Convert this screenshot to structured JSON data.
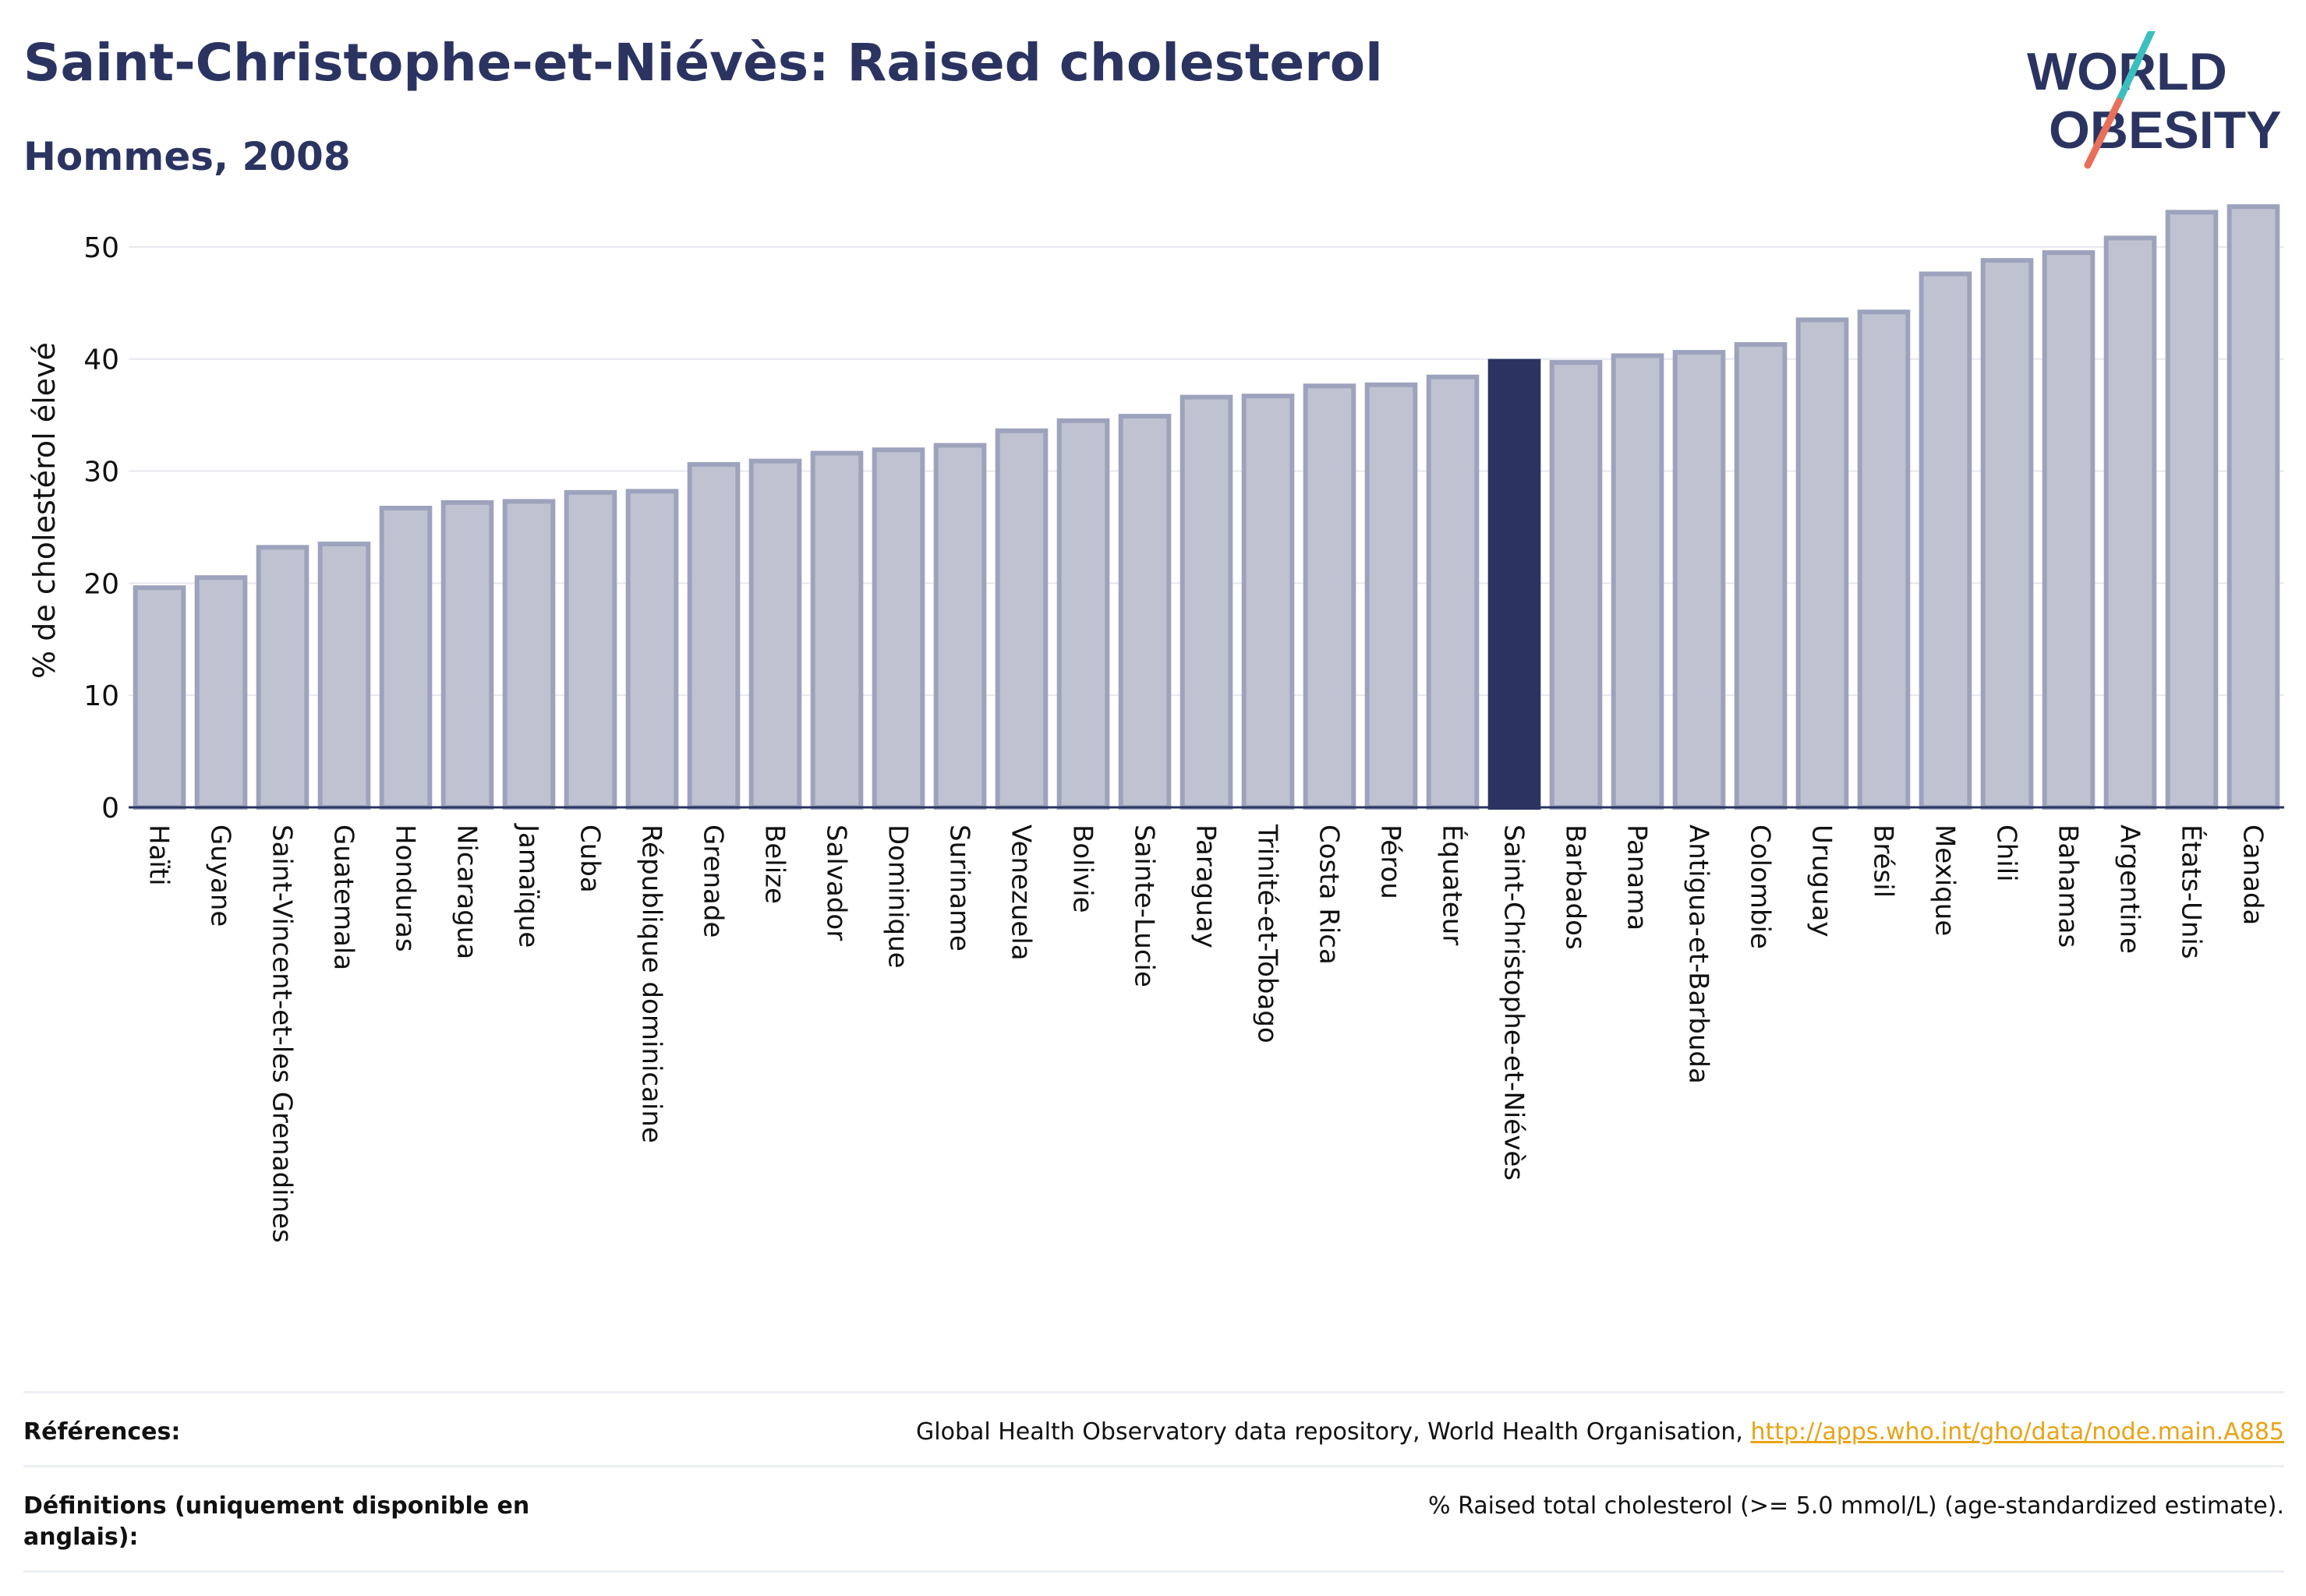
{
  "header": {
    "title": "Saint-Christophe-et-Niévès: Raised cholesterol",
    "subtitle": "Hommes, 2008"
  },
  "logo": {
    "line1": "WORLD",
    "line2": "OBESITY",
    "colors": {
      "text": "#2b3461",
      "slash_top": "#3cbfbf",
      "slash_bottom": "#e8705a"
    }
  },
  "chart_data": {
    "type": "bar",
    "ylabel": "% de cholestérol élevé",
    "xlabel": "",
    "ylim": [
      0,
      55
    ],
    "yticks": [
      0,
      10,
      20,
      30,
      40,
      50
    ],
    "grid": true,
    "highlight": "Saint-Christophe-et-Niévès",
    "colors": {
      "bar": "#bfc3d1",
      "bar_edge": "#9da3bc",
      "highlight": "#2b3461",
      "axis": "#2b3461",
      "grid": "#e6e8ef"
    },
    "categories": [
      "Haïti",
      "Guyane",
      "Saint-Vincent-et-les Grenadines",
      "Guatemala",
      "Honduras",
      "Nicaragua",
      "Jamaïque",
      "Cuba",
      "République dominicaine",
      "Grenade",
      "Belize",
      "Salvador",
      "Dominique",
      "Suriname",
      "Venezuela",
      "Bolivie",
      "Sainte-Lucie",
      "Paraguay",
      "Trinité-et-Tobago",
      "Costa Rica",
      "Pérou",
      "Équateur",
      "Saint-Christophe-et-Niévès",
      "Barbados",
      "Panama",
      "Antigua-et-Barbuda",
      "Colombie",
      "Uruguay",
      "Brésil",
      "Mexique",
      "Chili",
      "Bahamas",
      "Argentine",
      "États-Unis",
      "Canada"
    ],
    "values": [
      19.6,
      20.5,
      23.2,
      23.5,
      26.7,
      27.2,
      27.3,
      28.1,
      28.2,
      30.6,
      30.9,
      31.6,
      31.9,
      32.3,
      33.6,
      34.5,
      34.9,
      36.6,
      36.7,
      37.6,
      37.7,
      38.4,
      39.8,
      39.7,
      40.3,
      40.6,
      41.3,
      43.5,
      44.2,
      47.6,
      48.8,
      49.5,
      50.8,
      53.1,
      53.6
    ]
  },
  "references": {
    "label": "Références:",
    "text": "Global Health Observatory data repository, World Health Organisation, ",
    "link": "http://apps.who.int/gho/data/node.main.A885"
  },
  "definitions": {
    "label": "Définitions (uniquement disponible en anglais):",
    "text": "% Raised total cholesterol (>= 5.0 mmol/L) (age-standardized estimate)."
  }
}
